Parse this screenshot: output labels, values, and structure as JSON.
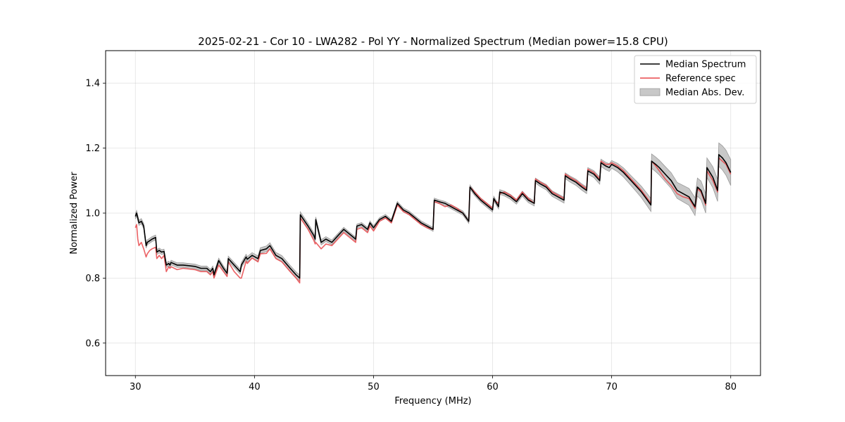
{
  "chart_data": {
    "type": "line",
    "title": "2025-02-21 - Cor 10 - LWA282 - Pol YY - Normalized Spectrum (Median power=15.8 CPU)",
    "xlabel": "Frequency (MHz)",
    "ylabel": "Normalized Power",
    "xlim": [
      27.5,
      82.5
    ],
    "ylim": [
      0.5,
      1.5
    ],
    "xticks": [
      30,
      40,
      50,
      60,
      70,
      80
    ],
    "yticks": [
      0.6,
      0.8,
      1.0,
      1.2,
      1.4
    ],
    "xtick_labels": [
      "30",
      "40",
      "50",
      "60",
      "70",
      "80"
    ],
    "ytick_labels": [
      "0.6",
      "0.8",
      "1.0",
      "1.2",
      "1.4"
    ],
    "grid": true,
    "legend_position": "top-right",
    "colors": {
      "median": "#000000",
      "reference": "#e8474a",
      "mad_fill": "#c8c8c8",
      "mad_edge": "#9a9a9a"
    },
    "series": [
      {
        "name": "Median Spectrum",
        "x": [
          30.0,
          30.1,
          30.2,
          30.3,
          30.5,
          30.7,
          30.9,
          31.0,
          31.2,
          31.4,
          31.7,
          31.8,
          32.0,
          32.2,
          32.4,
          32.6,
          32.8,
          32.9,
          33.0,
          33.5,
          34.0,
          34.5,
          35.0,
          35.5,
          36.0,
          36.3,
          36.5,
          36.6,
          37.0,
          37.4,
          37.7,
          37.8,
          38.3,
          38.8,
          38.9,
          39.3,
          39.4,
          39.8,
          40.3,
          40.5,
          41.0,
          41.3,
          41.8,
          42.3,
          43.0,
          43.5,
          43.8,
          43.85,
          44.5,
          45.0,
          45.1,
          45.15,
          45.6,
          46.0,
          46.5,
          47.0,
          47.5,
          48.0,
          48.5,
          48.6,
          49.0,
          49.5,
          49.7,
          50.0,
          50.5,
          51.0,
          51.5,
          52.0,
          52.5,
          53.0,
          53.5,
          54.0,
          54.5,
          55.0,
          55.1,
          55.5,
          56.0,
          56.5,
          57.0,
          57.5,
          58.0,
          58.1,
          58.5,
          59.0,
          59.5,
          60.0,
          60.1,
          60.5,
          60.6,
          61.0,
          61.5,
          62.0,
          62.5,
          63.0,
          63.5,
          63.6,
          64.0,
          64.5,
          65.0,
          65.5,
          66.0,
          66.1,
          66.5,
          67.0,
          67.5,
          67.9,
          68.0,
          68.5,
          69.0,
          69.1,
          69.5,
          69.8,
          70.0,
          70.5,
          71.0,
          71.5,
          72.0,
          72.5,
          73.0,
          73.3,
          73.35,
          73.7,
          74.0,
          74.5,
          75.0,
          75.5,
          76.0,
          76.5,
          77.0,
          77.2,
          77.5,
          77.9,
          78.0,
          78.5,
          78.9,
          79.0,
          79.3,
          79.6,
          80.0
        ],
        "values": [
          0.99,
          1.0,
          0.985,
          0.97,
          0.975,
          0.96,
          0.9,
          0.91,
          0.915,
          0.92,
          0.925,
          0.88,
          0.885,
          0.88,
          0.882,
          0.84,
          0.845,
          0.84,
          0.848,
          0.84,
          0.84,
          0.838,
          0.836,
          0.83,
          0.83,
          0.82,
          0.83,
          0.81,
          0.854,
          0.83,
          0.815,
          0.86,
          0.84,
          0.82,
          0.84,
          0.865,
          0.858,
          0.87,
          0.86,
          0.885,
          0.89,
          0.9,
          0.87,
          0.86,
          0.83,
          0.81,
          0.8,
          0.995,
          0.96,
          0.93,
          0.92,
          0.98,
          0.91,
          0.92,
          0.91,
          0.93,
          0.95,
          0.935,
          0.92,
          0.96,
          0.965,
          0.95,
          0.97,
          0.955,
          0.98,
          0.99,
          0.975,
          1.03,
          1.01,
          1.0,
          0.985,
          0.97,
          0.96,
          0.95,
          1.04,
          1.035,
          1.03,
          1.02,
          1.01,
          1.0,
          0.975,
          1.08,
          1.06,
          1.04,
          1.025,
          1.01,
          1.045,
          1.02,
          1.065,
          1.06,
          1.05,
          1.035,
          1.06,
          1.04,
          1.03,
          1.1,
          1.09,
          1.08,
          1.06,
          1.05,
          1.04,
          1.115,
          1.105,
          1.095,
          1.08,
          1.07,
          1.13,
          1.12,
          1.1,
          1.155,
          1.145,
          1.14,
          1.15,
          1.14,
          1.125,
          1.105,
          1.085,
          1.065,
          1.04,
          1.025,
          1.16,
          1.15,
          1.14,
          1.12,
          1.1,
          1.07,
          1.06,
          1.05,
          1.02,
          1.08,
          1.07,
          1.03,
          1.14,
          1.11,
          1.07,
          1.18,
          1.17,
          1.155,
          1.125
        ]
      },
      {
        "name": "Reference spec",
        "x": [
          30.0,
          30.1,
          30.2,
          30.3,
          30.5,
          30.7,
          30.9,
          31.0,
          31.2,
          31.4,
          31.7,
          31.8,
          32.0,
          32.2,
          32.4,
          32.6,
          32.8,
          32.9,
          33.0,
          33.5,
          34.0,
          34.5,
          35.0,
          35.5,
          36.0,
          36.3,
          36.5,
          36.6,
          37.0,
          37.4,
          37.7,
          37.8,
          38.3,
          38.8,
          38.9,
          39.3,
          39.4,
          39.8,
          40.3,
          40.5,
          41.0,
          41.3,
          41.8,
          42.3,
          43.0,
          43.5,
          43.8,
          43.85,
          44.5,
          45.0,
          45.1,
          45.15,
          45.6,
          46.0,
          46.5,
          47.0,
          47.5,
          48.0,
          48.5,
          48.6,
          49.0,
          49.5,
          49.7,
          50.0,
          50.5,
          51.0,
          51.5,
          52.0,
          52.5,
          53.0,
          53.5,
          54.0,
          54.5,
          55.0,
          55.1,
          55.5,
          56.0,
          56.5,
          57.0,
          57.5,
          58.0,
          58.1,
          58.5,
          59.0,
          59.5,
          60.0,
          60.1,
          60.5,
          60.6,
          61.0,
          61.5,
          62.0,
          62.5,
          63.0,
          63.5,
          63.6,
          64.0,
          64.5,
          65.0,
          65.5,
          66.0,
          66.1,
          66.5,
          67.0,
          67.5,
          67.9,
          68.0,
          68.5,
          69.0,
          69.1,
          69.5,
          69.8,
          70.0,
          70.5,
          71.0,
          71.5,
          72.0,
          72.5,
          73.0,
          73.3,
          73.35,
          73.7,
          74.0,
          74.5,
          75.0,
          75.5,
          76.0,
          76.5,
          77.0,
          77.2,
          77.5,
          77.9,
          78.0,
          78.5,
          78.9,
          79.0,
          79.3,
          79.6,
          80.0
        ],
        "values": [
          0.955,
          0.965,
          0.92,
          0.9,
          0.91,
          0.89,
          0.865,
          0.875,
          0.885,
          0.89,
          0.895,
          0.86,
          0.87,
          0.86,
          0.87,
          0.82,
          0.835,
          0.83,
          0.835,
          0.826,
          0.83,
          0.828,
          0.826,
          0.82,
          0.82,
          0.81,
          0.82,
          0.8,
          0.84,
          0.82,
          0.805,
          0.85,
          0.82,
          0.8,
          0.8,
          0.852,
          0.845,
          0.862,
          0.85,
          0.875,
          0.876,
          0.89,
          0.86,
          0.85,
          0.82,
          0.8,
          0.785,
          0.985,
          0.95,
          0.915,
          0.905,
          0.91,
          0.89,
          0.905,
          0.9,
          0.92,
          0.94,
          0.925,
          0.91,
          0.95,
          0.955,
          0.94,
          0.96,
          0.945,
          0.975,
          0.985,
          0.97,
          1.025,
          1.005,
          0.995,
          0.98,
          0.965,
          0.955,
          0.95,
          1.035,
          1.03,
          1.02,
          1.025,
          1.015,
          1.0,
          0.975,
          1.08,
          1.065,
          1.045,
          1.03,
          1.015,
          1.04,
          1.03,
          1.06,
          1.065,
          1.055,
          1.04,
          1.065,
          1.045,
          1.03,
          1.105,
          1.095,
          1.085,
          1.065,
          1.055,
          1.045,
          1.12,
          1.11,
          1.1,
          1.085,
          1.075,
          1.135,
          1.125,
          1.105,
          1.16,
          1.15,
          1.15,
          1.155,
          1.145,
          1.13,
          1.11,
          1.09,
          1.07,
          1.045,
          1.03,
          1.16,
          1.145,
          1.13,
          1.105,
          1.085,
          1.06,
          1.05,
          1.045,
          1.015,
          1.075,
          1.065,
          1.025,
          1.13,
          1.1,
          1.065,
          1.17,
          1.16,
          1.15,
          1.12
        ]
      }
    ],
    "band": {
      "name": "Median Abs. Dev.",
      "x": [
        30.0,
        33.0,
        36.0,
        39.0,
        42.0,
        43.8,
        43.85,
        48.0,
        52.0,
        56.0,
        60.0,
        64.0,
        68.0,
        70.0,
        72.0,
        73.3,
        73.35,
        75.0,
        76.5,
        78.0,
        78.9,
        79.0,
        80.0
      ],
      "halfwidth": [
        0.008,
        0.007,
        0.007,
        0.008,
        0.009,
        0.009,
        0.009,
        0.006,
        0.006,
        0.006,
        0.007,
        0.008,
        0.01,
        0.012,
        0.016,
        0.02,
        0.022,
        0.024,
        0.026,
        0.03,
        0.034,
        0.036,
        0.04
      ]
    }
  }
}
